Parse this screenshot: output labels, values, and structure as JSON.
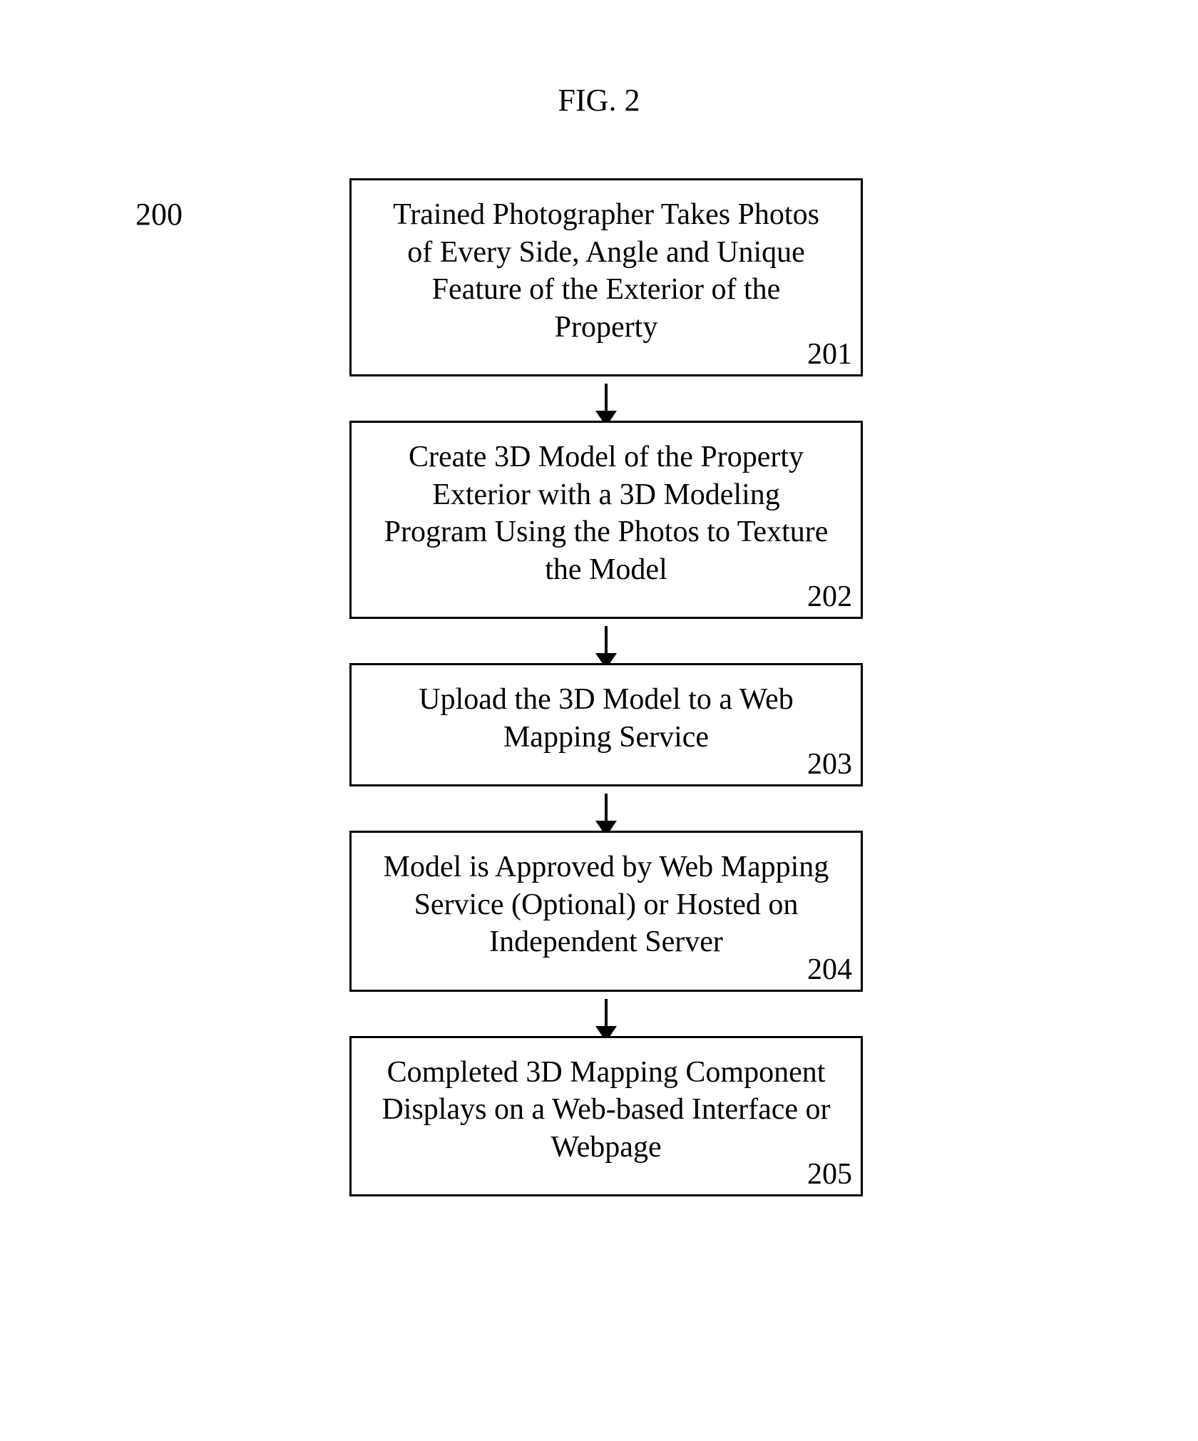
{
  "figure": {
    "title": "FIG. 2",
    "reference_number": "200"
  },
  "flowchart": {
    "type": "flowchart",
    "background_color": "#ffffff",
    "border_color": "#000000",
    "border_width": 3,
    "text_color": "#000000",
    "font_family": "Times New Roman",
    "title_fontsize": 44,
    "node_fontsize": 42,
    "arrow_color": "#000000",
    "nodes": [
      {
        "id": "201",
        "text": "Trained Photographer Takes Photos of Every Side, Angle and Unique Feature of the Exterior of the Property"
      },
      {
        "id": "202",
        "text": "Create 3D Model of the Property Exterior with a 3D Modeling Program Using the Photos to Texture the Model"
      },
      {
        "id": "203",
        "text": "Upload the 3D Model to a Web Mapping Service"
      },
      {
        "id": "204",
        "text": "Model is Approved by Web Mapping Service (Optional) or Hosted on Independent Server"
      },
      {
        "id": "205",
        "text": "Completed 3D Mapping Component Displays on a Web-based Interface or Webpage"
      }
    ],
    "edges": [
      {
        "from": "201",
        "to": "202"
      },
      {
        "from": "202",
        "to": "203"
      },
      {
        "from": "203",
        "to": "204"
      },
      {
        "from": "204",
        "to": "205"
      }
    ]
  }
}
